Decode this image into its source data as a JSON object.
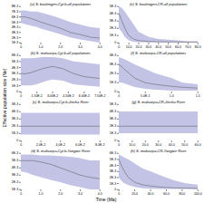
{
  "xlabel": "Time (Ma)",
  "ylabel": "Effective population size (Ne)",
  "chart_data": [
    {
      "type": "line",
      "title": "(a) S. boulengeri-Cyt b-all populations",
      "x": [
        0,
        0.2,
        0.5,
        0.8,
        1.0,
        1.5,
        2.0,
        2.5,
        3.0,
        3.5,
        4.0
      ],
      "series": [
        {
          "type": "area",
          "color": "#7b7bc8",
          "lower": [
            0.0048,
            0.0046,
            0.0043,
            0.004,
            0.0037,
            0.0032,
            0.0026,
            0.002,
            0.0016,
            0.0013,
            0.001
          ],
          "upper": [
            0.0072,
            0.0072,
            0.007,
            0.007,
            0.0068,
            0.0063,
            0.0057,
            0.005,
            0.0045,
            0.004,
            0.0038
          ]
        },
        {
          "type": "line",
          "color": "#555555",
          "values": [
            0.006,
            0.006,
            0.0057,
            0.0053,
            0.005,
            0.0044,
            0.0038,
            0.003,
            0.0026,
            0.0021,
            0.0019
          ]
        }
      ],
      "xlim": [
        0,
        4.0
      ],
      "xticks": [
        0,
        {
          "value": 1.0,
          "label": "1.0"
        },
        {
          "value": 2.0,
          "label": "2.0"
        },
        {
          "value": 3.0,
          "label": "3.0"
        },
        {
          "value": 4.0,
          "label": "4.0"
        }
      ],
      "ylim": [
        0.001,
        0.008
      ],
      "yticks": [
        {
          "value": 0.001,
          "label": "1E-3"
        },
        {
          "value": 0.002,
          "label": "2E-3"
        },
        {
          "value": 0.003,
          "label": "3E-3"
        },
        {
          "value": 0.004,
          "label": "4E-3"
        },
        {
          "value": 0.005,
          "label": "5E-3"
        },
        {
          "value": 0.006,
          "label": "6E-3"
        },
        {
          "value": 0.007,
          "label": "7E-3"
        },
        {
          "value": 0.008,
          "label": "8E-3"
        }
      ]
    },
    {
      "type": "line",
      "title": "(e) S. boulengeri-CR-all populations",
      "x": [
        0,
        3,
        6,
        10,
        15,
        20,
        30,
        40,
        50,
        60,
        70,
        80
      ],
      "series": [
        {
          "type": "area",
          "color": "#7b7bc8",
          "lower": [
            0.002,
            0.0015,
            0.0008,
            0.0003,
            0.0001,
            5e-05,
            3e-05,
            2e-05,
            2e-05,
            2e-05,
            2e-05,
            2e-05
          ],
          "upper": [
            0.005,
            0.0048,
            0.0043,
            0.0035,
            0.0025,
            0.0015,
            0.0008,
            0.0005,
            0.0004,
            0.0003,
            0.0002,
            0.0002
          ]
        },
        {
          "type": "line",
          "color": "#555555",
          "values": [
            0.004,
            0.003,
            0.002,
            0.001,
            0.0005,
            0.0003,
            0.0002,
            0.00015,
            0.00012,
            0.0001,
            0.0001,
            0.0001
          ]
        }
      ],
      "xlim": [
        0,
        80.0
      ],
      "xticks": [
        0,
        {
          "value": 10.0,
          "label": "10.0"
        },
        {
          "value": 20.0,
          "label": "20.0"
        },
        {
          "value": 30.0,
          "label": "30.0"
        },
        {
          "value": 40.0,
          "label": "40.0"
        },
        {
          "value": 50.0,
          "label": "50.0"
        },
        {
          "value": 60.0,
          "label": "60.0"
        },
        {
          "value": 70.0,
          "label": "70.0"
        },
        {
          "value": 80.0,
          "label": "80.0"
        }
      ],
      "ylim": [
        0,
        0.005
      ],
      "yticks": [
        0,
        {
          "value": 0.001,
          "label": "1E-3"
        },
        {
          "value": 0.002,
          "label": "2E-3"
        },
        {
          "value": 0.003,
          "label": "3E-3"
        },
        {
          "value": 0.004,
          "label": "4E-3"
        },
        {
          "value": 0.005,
          "label": "5E-3"
        }
      ]
    },
    {
      "type": "line",
      "title": "(b) S. malicorpa-Cyt b-all populations",
      "x": [
        0,
        0.005,
        0.01,
        0.015,
        0.02,
        0.025,
        0.03,
        0.04,
        0.05,
        0.06,
        0.075
      ],
      "series": [
        {
          "type": "area",
          "color": "#7b7bc8",
          "lower": [
            0.001,
            0.001,
            0.001,
            0.0012,
            0.0015,
            0.0018,
            0.002,
            0.0018,
            0.0012,
            0.001,
            0.0008
          ],
          "upper": [
            0.0055,
            0.0055,
            0.0055,
            0.0056,
            0.0057,
            0.0057,
            0.0057,
            0.0055,
            0.005,
            0.0048,
            0.0045
          ]
        },
        {
          "type": "line",
          "color": "#555555",
          "values": [
            0.003,
            0.003,
            0.0032,
            0.0035,
            0.0038,
            0.004,
            0.0042,
            0.0038,
            0.003,
            0.0025,
            0.0022
          ]
        }
      ],
      "xlim": [
        0,
        0.075
      ],
      "xticks": [
        0,
        {
          "value": 0.015,
          "label": "1.50E-2"
        },
        {
          "value": 0.03,
          "label": "3.00E-2"
        },
        {
          "value": 0.045,
          "label": "4.50E-2"
        },
        {
          "value": 0.06,
          "label": "6.00E-2"
        },
        {
          "value": 0.075,
          "label": "7.50E-2"
        }
      ],
      "ylim": [
        0,
        0.006
      ],
      "yticks": [
        0,
        {
          "value": 0.001,
          "label": "1E-3"
        },
        {
          "value": 0.002,
          "label": "2E-3"
        },
        {
          "value": 0.003,
          "label": "3E-3"
        },
        {
          "value": 0.004,
          "label": "4E-3"
        },
        {
          "value": 0.005,
          "label": "5E-3"
        },
        {
          "value": 0.006,
          "label": "6E-3"
        }
      ]
    },
    {
      "type": "line",
      "title": "(f) S. malicorpa-CR-all populations",
      "x": [
        0,
        0.05,
        0.1,
        0.2,
        0.3,
        0.5,
        0.7,
        1.0,
        1.2,
        1.5
      ],
      "series": [
        {
          "type": "area",
          "color": "#7b7bc8",
          "lower": [
            0.001,
            0.001,
            0.0009,
            0.0007,
            0.0005,
            0.0003,
            0.0002,
            0.0001,
            0.0001,
            0.0001
          ],
          "upper": [
            0.0038,
            0.0037,
            0.0036,
            0.0033,
            0.003,
            0.0025,
            0.002,
            0.0015,
            0.001,
            0.0008
          ]
        },
        {
          "type": "line",
          "color": "#555555",
          "values": [
            0.003,
            0.0028,
            0.0025,
            0.002,
            0.0015,
            0.001,
            0.0008,
            0.0006,
            0.0005,
            0.0004
          ]
        }
      ],
      "xlim": [
        0,
        1.5
      ],
      "xticks": [
        0,
        {
          "value": 0.5,
          "label": "5.0E-1"
        },
        {
          "value": 1.0,
          "label": "1.0"
        },
        1.5
      ],
      "ylim": [
        0,
        0.004
      ],
      "yticks": [
        0,
        {
          "value": 0.001,
          "label": "1E-3"
        },
        {
          "value": 0.002,
          "label": "2E-3"
        },
        {
          "value": 0.003,
          "label": "3E-3"
        },
        {
          "value": 0.004,
          "label": "4E-3"
        }
      ]
    },
    {
      "type": "line",
      "title": "(c) S. malicorpa-Cyt b-Jinsha River",
      "x": [
        0,
        0.01,
        0.02,
        0.04,
        0.06,
        0.08
      ],
      "series": [
        {
          "type": "area",
          "color": "#7b7bc8",
          "lower": [
            0.0008,
            0.0008,
            0.0008,
            0.0008,
            0.0008,
            0.0008
          ],
          "upper": [
            0.0038,
            0.0038,
            0.0038,
            0.0038,
            0.0038,
            0.0038
          ]
        },
        {
          "type": "line",
          "color": "#555555",
          "values": [
            0.002,
            0.002,
            0.002,
            0.002,
            0.002,
            0.002
          ]
        }
      ],
      "xlim": [
        0,
        0.08
      ],
      "xticks": [
        0,
        {
          "value": 0.02,
          "label": "2.0E-2"
        },
        {
          "value": 0.04,
          "label": "4.0E-2"
        },
        {
          "value": 0.06,
          "label": "6.0E-2"
        },
        {
          "value": 0.08,
          "label": "8.0E-2"
        }
      ],
      "ylim": [
        0,
        0.005
      ],
      "yticks": [
        0,
        {
          "value": 0.001,
          "label": "1E-3"
        },
        {
          "value": 0.002,
          "label": "2E-3"
        },
        {
          "value": 0.003,
          "label": "3E-3"
        },
        {
          "value": 0.004,
          "label": "4E-3"
        },
        {
          "value": 0.005,
          "label": "5E-3"
        }
      ]
    },
    {
      "type": "line",
      "title": "(g) S. malicorpa-CR-Jinsha River",
      "x": [
        0,
        5,
        15,
        30,
        45,
        60
      ],
      "series": [
        {
          "type": "area",
          "color": "#7b7bc8",
          "lower": [
            0.001,
            0.001,
            0.001,
            0.001,
            0.001,
            0.001
          ],
          "upper": [
            0.004,
            0.004,
            0.004,
            0.004,
            0.004,
            0.004
          ]
        },
        {
          "type": "line",
          "color": "#555555",
          "values": [
            0.002,
            0.002,
            0.002,
            0.002,
            0.002,
            0.002
          ]
        }
      ],
      "xlim": [
        0,
        60.0
      ],
      "xticks": [
        0,
        {
          "value": 10,
          "label": "10.0"
        },
        {
          "value": 20,
          "label": "20.0"
        },
        {
          "value": 30,
          "label": "30.0"
        },
        {
          "value": 40,
          "label": "40.0"
        },
        {
          "value": 50,
          "label": "50.0"
        },
        {
          "value": 60,
          "label": "60.0"
        }
      ],
      "ylim": [
        0,
        0.005
      ],
      "yticks": [
        0,
        {
          "value": 0.001,
          "label": "1E-3"
        },
        {
          "value": 0.002,
          "label": "2E-3"
        },
        {
          "value": 0.003,
          "label": "3E-3"
        },
        {
          "value": 0.004,
          "label": "4E-3"
        },
        {
          "value": 0.005,
          "label": "5E-3"
        }
      ]
    },
    {
      "type": "line",
      "title": "(d) S. malicorpa-Cyt b-Yangtze River",
      "x": [
        0,
        0.3,
        0.6,
        1.0,
        1.5,
        2.0,
        2.5,
        3.0,
        3.5,
        4.0
      ],
      "series": [
        {
          "type": "area",
          "color": "#7b7bc8",
          "lower": [
            0.0035,
            0.0033,
            0.003,
            0.0027,
            0.0023,
            0.002,
            0.0016,
            0.0013,
            0.001,
            0.001
          ],
          "upper": [
            0.0058,
            0.0058,
            0.0058,
            0.0057,
            0.0057,
            0.0056,
            0.0055,
            0.0053,
            0.005,
            0.005
          ]
        },
        {
          "type": "line",
          "color": "#555555",
          "values": [
            0.005,
            0.005,
            0.005,
            0.0048,
            0.0045,
            0.004,
            0.0035,
            0.003,
            0.0027,
            0.0025
          ]
        }
      ],
      "xlim": [
        0,
        4.0
      ],
      "xticks": [
        0,
        {
          "value": 1.0,
          "label": "1.0"
        },
        {
          "value": 2.0,
          "label": "2.0"
        },
        {
          "value": 3.0,
          "label": "3.0"
        },
        {
          "value": 4.0,
          "label": "4.0"
        }
      ],
      "ylim": [
        0.001,
        0.006
      ],
      "yticks": [
        {
          "value": 0.001,
          "label": "1E-3"
        },
        {
          "value": 0.002,
          "label": "2E-3"
        },
        {
          "value": 0.003,
          "label": "3E-3"
        },
        {
          "value": 0.004,
          "label": "4E-3"
        },
        {
          "value": 0.005,
          "label": "5E-3"
        },
        {
          "value": 0.006,
          "label": "6E-3"
        }
      ]
    },
    {
      "type": "line",
      "title": "(h) S. malicorpa-CR-Yangtze River",
      "x": [
        0,
        3,
        7,
        12,
        20,
        30,
        40,
        55,
        70,
        85,
        100
      ],
      "series": [
        {
          "type": "area",
          "color": "#7b7bc8",
          "lower": [
            0.002,
            0.0015,
            0.001,
            0.0007,
            0.0004,
            0.0002,
            0.0001,
            8e-05,
            7e-05,
            6e-05,
            5e-05
          ],
          "upper": [
            0.0058,
            0.0056,
            0.0053,
            0.005,
            0.0043,
            0.0035,
            0.003,
            0.0022,
            0.0015,
            0.001,
            0.0008
          ]
        },
        {
          "type": "line",
          "color": "#555555",
          "values": [
            0.005,
            0.004,
            0.003,
            0.002,
            0.0012,
            0.0008,
            0.0006,
            0.0004,
            0.0003,
            0.00025,
            0.0002
          ]
        }
      ],
      "xlim": [
        0,
        100.0
      ],
      "xticks": [
        0,
        {
          "value": 20,
          "label": "20.0"
        },
        {
          "value": 40,
          "label": "40.0"
        },
        {
          "value": 60,
          "label": "60.0"
        },
        {
          "value": 80,
          "label": "80.0"
        },
        {
          "value": 100,
          "label": "100.0"
        }
      ],
      "ylim": [
        0,
        0.006
      ],
      "yticks": [
        0,
        {
          "value": 0.001,
          "label": "1E-3"
        },
        {
          "value": 0.002,
          "label": "2E-3"
        },
        {
          "value": 0.003,
          "label": "3E-3"
        },
        {
          "value": 0.004,
          "label": "4E-3"
        },
        {
          "value": 0.005,
          "label": "5E-3"
        },
        {
          "value": 0.006,
          "label": "6E-3"
        }
      ]
    }
  ]
}
